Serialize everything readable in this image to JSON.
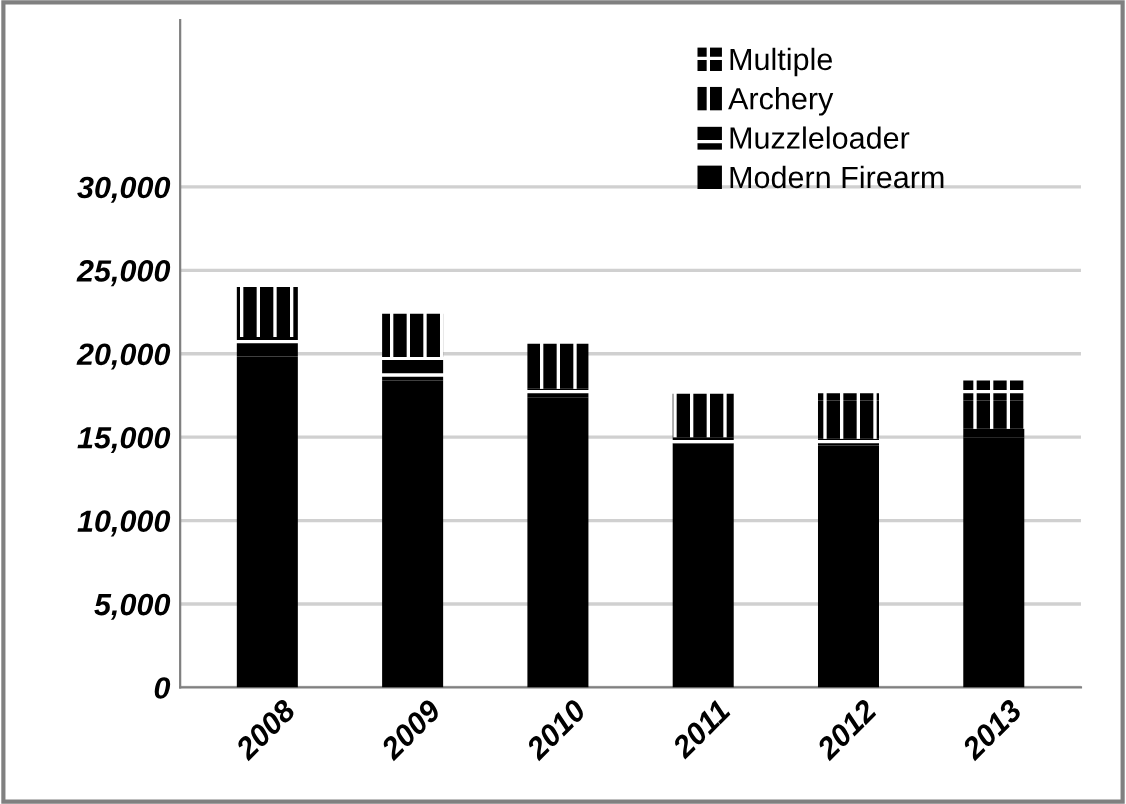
{
  "chart_data": {
    "type": "bar",
    "stacked": true,
    "categories": [
      "2008",
      "2009",
      "2010",
      "2011",
      "2012",
      "2013"
    ],
    "series": [
      {
        "name": "Modern Firearm",
        "color": "#000000",
        "values": [
          19800,
          18400,
          17400,
          14600,
          14500,
          15000
        ]
      },
      {
        "name": "Muzzleloader",
        "color": "#000000",
        "values": [
          1200,
          1400,
          500,
          400,
          400,
          500
        ]
      },
      {
        "name": "Archery",
        "color": "#000000",
        "values": [
          3000,
          2600,
          2700,
          2600,
          2300,
          1700
        ]
      },
      {
        "name": "Multiple",
        "color": "#000000",
        "values": [
          null,
          null,
          null,
          null,
          600,
          1200
        ]
      }
    ],
    "ylim": [
      0,
      40000
    ],
    "yticks": [
      {
        "value": 0,
        "label": "0"
      },
      {
        "value": 5000,
        "label": "5,000"
      },
      {
        "value": 10000,
        "label": "10,000"
      },
      {
        "value": 15000,
        "label": "15,000"
      },
      {
        "value": 20000,
        "label": "20,000"
      },
      {
        "value": 25000,
        "label": "25,000"
      },
      {
        "value": 30000,
        "label": "30,000"
      }
    ],
    "grid": "y",
    "legend": "top right"
  }
}
